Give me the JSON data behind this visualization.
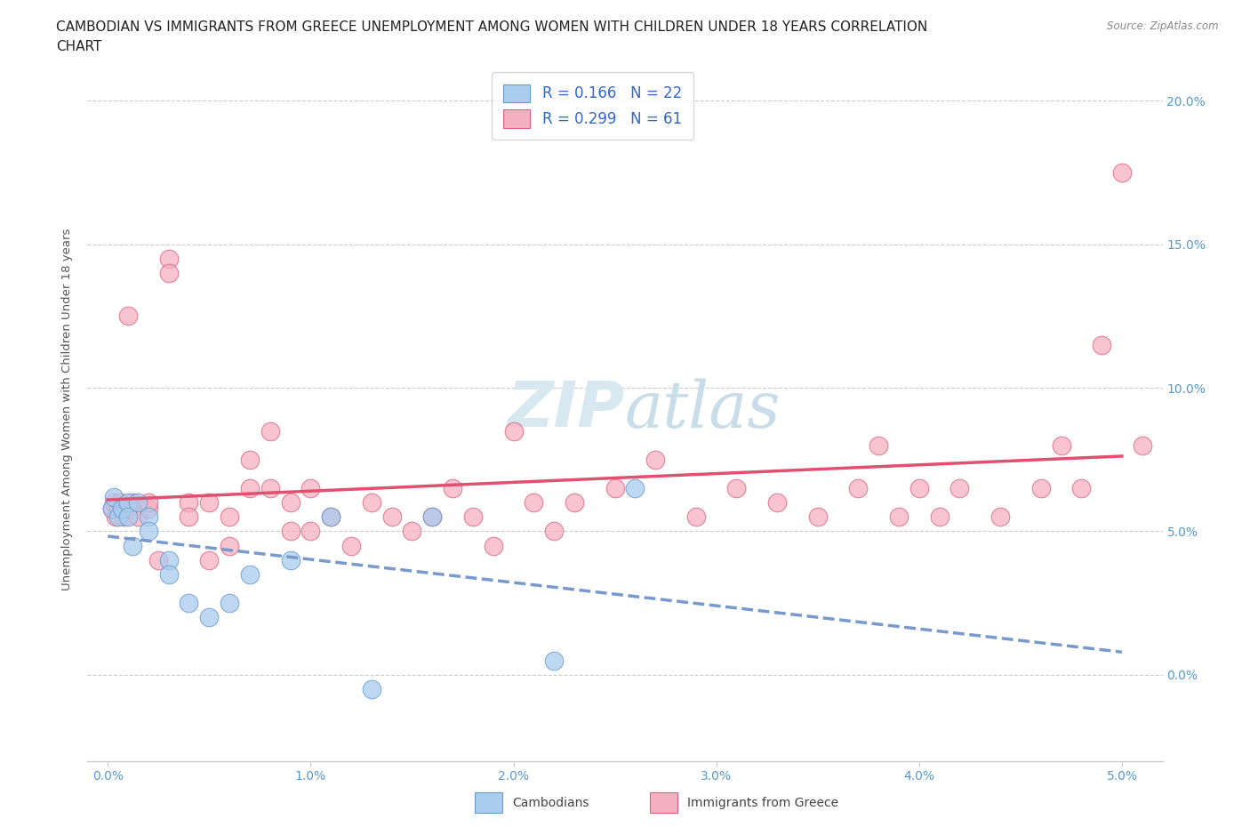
{
  "title_line1": "CAMBODIAN VS IMMIGRANTS FROM GREECE UNEMPLOYMENT AMONG WOMEN WITH CHILDREN UNDER 18 YEARS CORRELATION",
  "title_line2": "CHART",
  "source": "Source: ZipAtlas.com",
  "ylabel": "Unemployment Among Women with Children Under 18 years",
  "xlim": [
    -0.001,
    0.052
  ],
  "ylim": [
    -0.03,
    0.215
  ],
  "xtick_vals": [
    0.0,
    0.01,
    0.02,
    0.03,
    0.04,
    0.05
  ],
  "ytick_vals": [
    0.0,
    0.05,
    0.1,
    0.15,
    0.2
  ],
  "cambodian_color": "#aaccee",
  "cambodian_edge": "#6699cc",
  "greece_color": "#f5b0c0",
  "greece_edge": "#e06080",
  "cambodian_R": "0.166",
  "cambodian_N": "22",
  "greece_R": "0.299",
  "greece_N": "61",
  "cambodian_line_color": "#7799cc",
  "greece_line_color": "#e05070",
  "watermark_color": "#d8e8f0",
  "legend_R_color": "#3366cc",
  "tick_color": "#5599cc",
  "camb_x": [
    0.0002,
    0.0003,
    0.0005,
    0.0007,
    0.001,
    0.001,
    0.0012,
    0.0015,
    0.002,
    0.002,
    0.003,
    0.003,
    0.004,
    0.005,
    0.006,
    0.007,
    0.009,
    0.011,
    0.013,
    0.016,
    0.022,
    0.026
  ],
  "camb_y": [
    0.058,
    0.062,
    0.055,
    0.058,
    0.06,
    0.055,
    0.045,
    0.06,
    0.055,
    0.05,
    0.04,
    0.035,
    0.025,
    0.02,
    0.025,
    0.035,
    0.04,
    0.055,
    -0.005,
    0.055,
    0.005,
    0.065
  ],
  "greece_x": [
    0.0002,
    0.0003,
    0.0004,
    0.0005,
    0.0006,
    0.0008,
    0.001,
    0.001,
    0.0012,
    0.0015,
    0.002,
    0.002,
    0.0025,
    0.003,
    0.003,
    0.004,
    0.004,
    0.005,
    0.005,
    0.006,
    0.006,
    0.007,
    0.007,
    0.008,
    0.008,
    0.009,
    0.009,
    0.01,
    0.01,
    0.011,
    0.012,
    0.013,
    0.014,
    0.015,
    0.016,
    0.017,
    0.018,
    0.019,
    0.02,
    0.021,
    0.022,
    0.023,
    0.025,
    0.027,
    0.029,
    0.031,
    0.033,
    0.035,
    0.037,
    0.038,
    0.039,
    0.04,
    0.041,
    0.042,
    0.044,
    0.046,
    0.047,
    0.048,
    0.049,
    0.05,
    0.051
  ],
  "greece_y": [
    0.058,
    0.06,
    0.055,
    0.058,
    0.06,
    0.055,
    0.058,
    0.125,
    0.06,
    0.055,
    0.058,
    0.06,
    0.04,
    0.145,
    0.14,
    0.06,
    0.055,
    0.06,
    0.04,
    0.055,
    0.045,
    0.065,
    0.075,
    0.065,
    0.085,
    0.05,
    0.06,
    0.065,
    0.05,
    0.055,
    0.045,
    0.06,
    0.055,
    0.05,
    0.055,
    0.065,
    0.055,
    0.045,
    0.085,
    0.06,
    0.05,
    0.06,
    0.065,
    0.075,
    0.055,
    0.065,
    0.06,
    0.055,
    0.065,
    0.08,
    0.055,
    0.065,
    0.055,
    0.065,
    0.055,
    0.065,
    0.08,
    0.065,
    0.115,
    0.175,
    0.08
  ]
}
